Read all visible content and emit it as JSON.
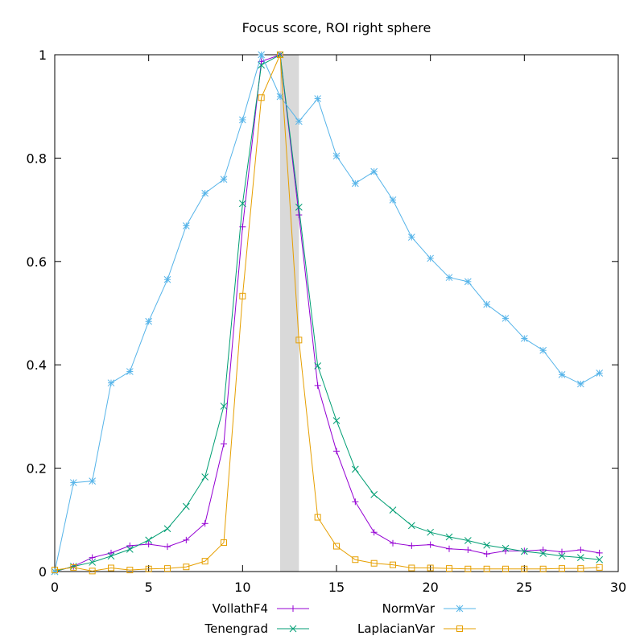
{
  "chart_data": {
    "type": "line",
    "title": "Focus score, ROI right sphere",
    "xlabel": "",
    "ylabel": "",
    "xlim": [
      0,
      30
    ],
    "ylim": [
      0,
      1
    ],
    "x_ticks": [
      "0",
      "5",
      "10",
      "15",
      "20",
      "25",
      "30"
    ],
    "y_ticks": [
      "0",
      "0.2",
      "0.4",
      "0.6",
      "0.8",
      "1"
    ],
    "grid": false,
    "legend_position": "bottom",
    "highlight_band": {
      "x_from": 12,
      "x_to": 13,
      "color": "#d9d9d9"
    },
    "x": [
      0,
      1,
      2,
      3,
      4,
      5,
      6,
      7,
      8,
      9,
      10,
      11,
      12,
      13,
      14,
      15,
      16,
      17,
      18,
      19,
      20,
      21,
      22,
      23,
      24,
      25,
      26,
      27,
      28,
      29
    ],
    "series": [
      {
        "name": "VollathF4",
        "color": "#9400d3",
        "marker": "plus",
        "values": [
          0.0,
          0.01,
          0.027,
          0.036,
          0.05,
          0.053,
          0.048,
          0.061,
          0.093,
          0.247,
          0.667,
          0.987,
          1.0,
          0.69,
          0.36,
          0.233,
          0.135,
          0.076,
          0.055,
          0.05,
          0.052,
          0.044,
          0.042,
          0.034,
          0.04,
          0.04,
          0.042,
          0.038,
          0.042,
          0.036
        ]
      },
      {
        "name": "Tenengrad",
        "color": "#009e73",
        "marker": "cross",
        "values": [
          0.0,
          0.01,
          0.018,
          0.03,
          0.043,
          0.061,
          0.083,
          0.126,
          0.183,
          0.32,
          0.712,
          0.98,
          1.0,
          0.705,
          0.398,
          0.292,
          0.198,
          0.149,
          0.119,
          0.089,
          0.076,
          0.067,
          0.06,
          0.051,
          0.045,
          0.039,
          0.035,
          0.03,
          0.027,
          0.023
        ]
      },
      {
        "name": "NormVar",
        "color": "#56b4e9",
        "marker": "star",
        "values": [
          0.0,
          0.172,
          0.175,
          0.365,
          0.387,
          0.484,
          0.565,
          0.669,
          0.732,
          0.759,
          0.874,
          1.0,
          0.919,
          0.871,
          0.915,
          0.804,
          0.751,
          0.774,
          0.719,
          0.647,
          0.606,
          0.569,
          0.561,
          0.517,
          0.49,
          0.451,
          0.428,
          0.381,
          0.363,
          0.384
        ]
      },
      {
        "name": "LaplacianVar",
        "color": "#e69f00",
        "marker": "square",
        "values": [
          0.003,
          0.008,
          0.001,
          0.007,
          0.003,
          0.005,
          0.006,
          0.009,
          0.02,
          0.056,
          0.533,
          0.917,
          1.0,
          0.448,
          0.105,
          0.049,
          0.023,
          0.016,
          0.013,
          0.007,
          0.007,
          0.006,
          0.005,
          0.005,
          0.005,
          0.005,
          0.005,
          0.006,
          0.006,
          0.008
        ]
      }
    ]
  }
}
